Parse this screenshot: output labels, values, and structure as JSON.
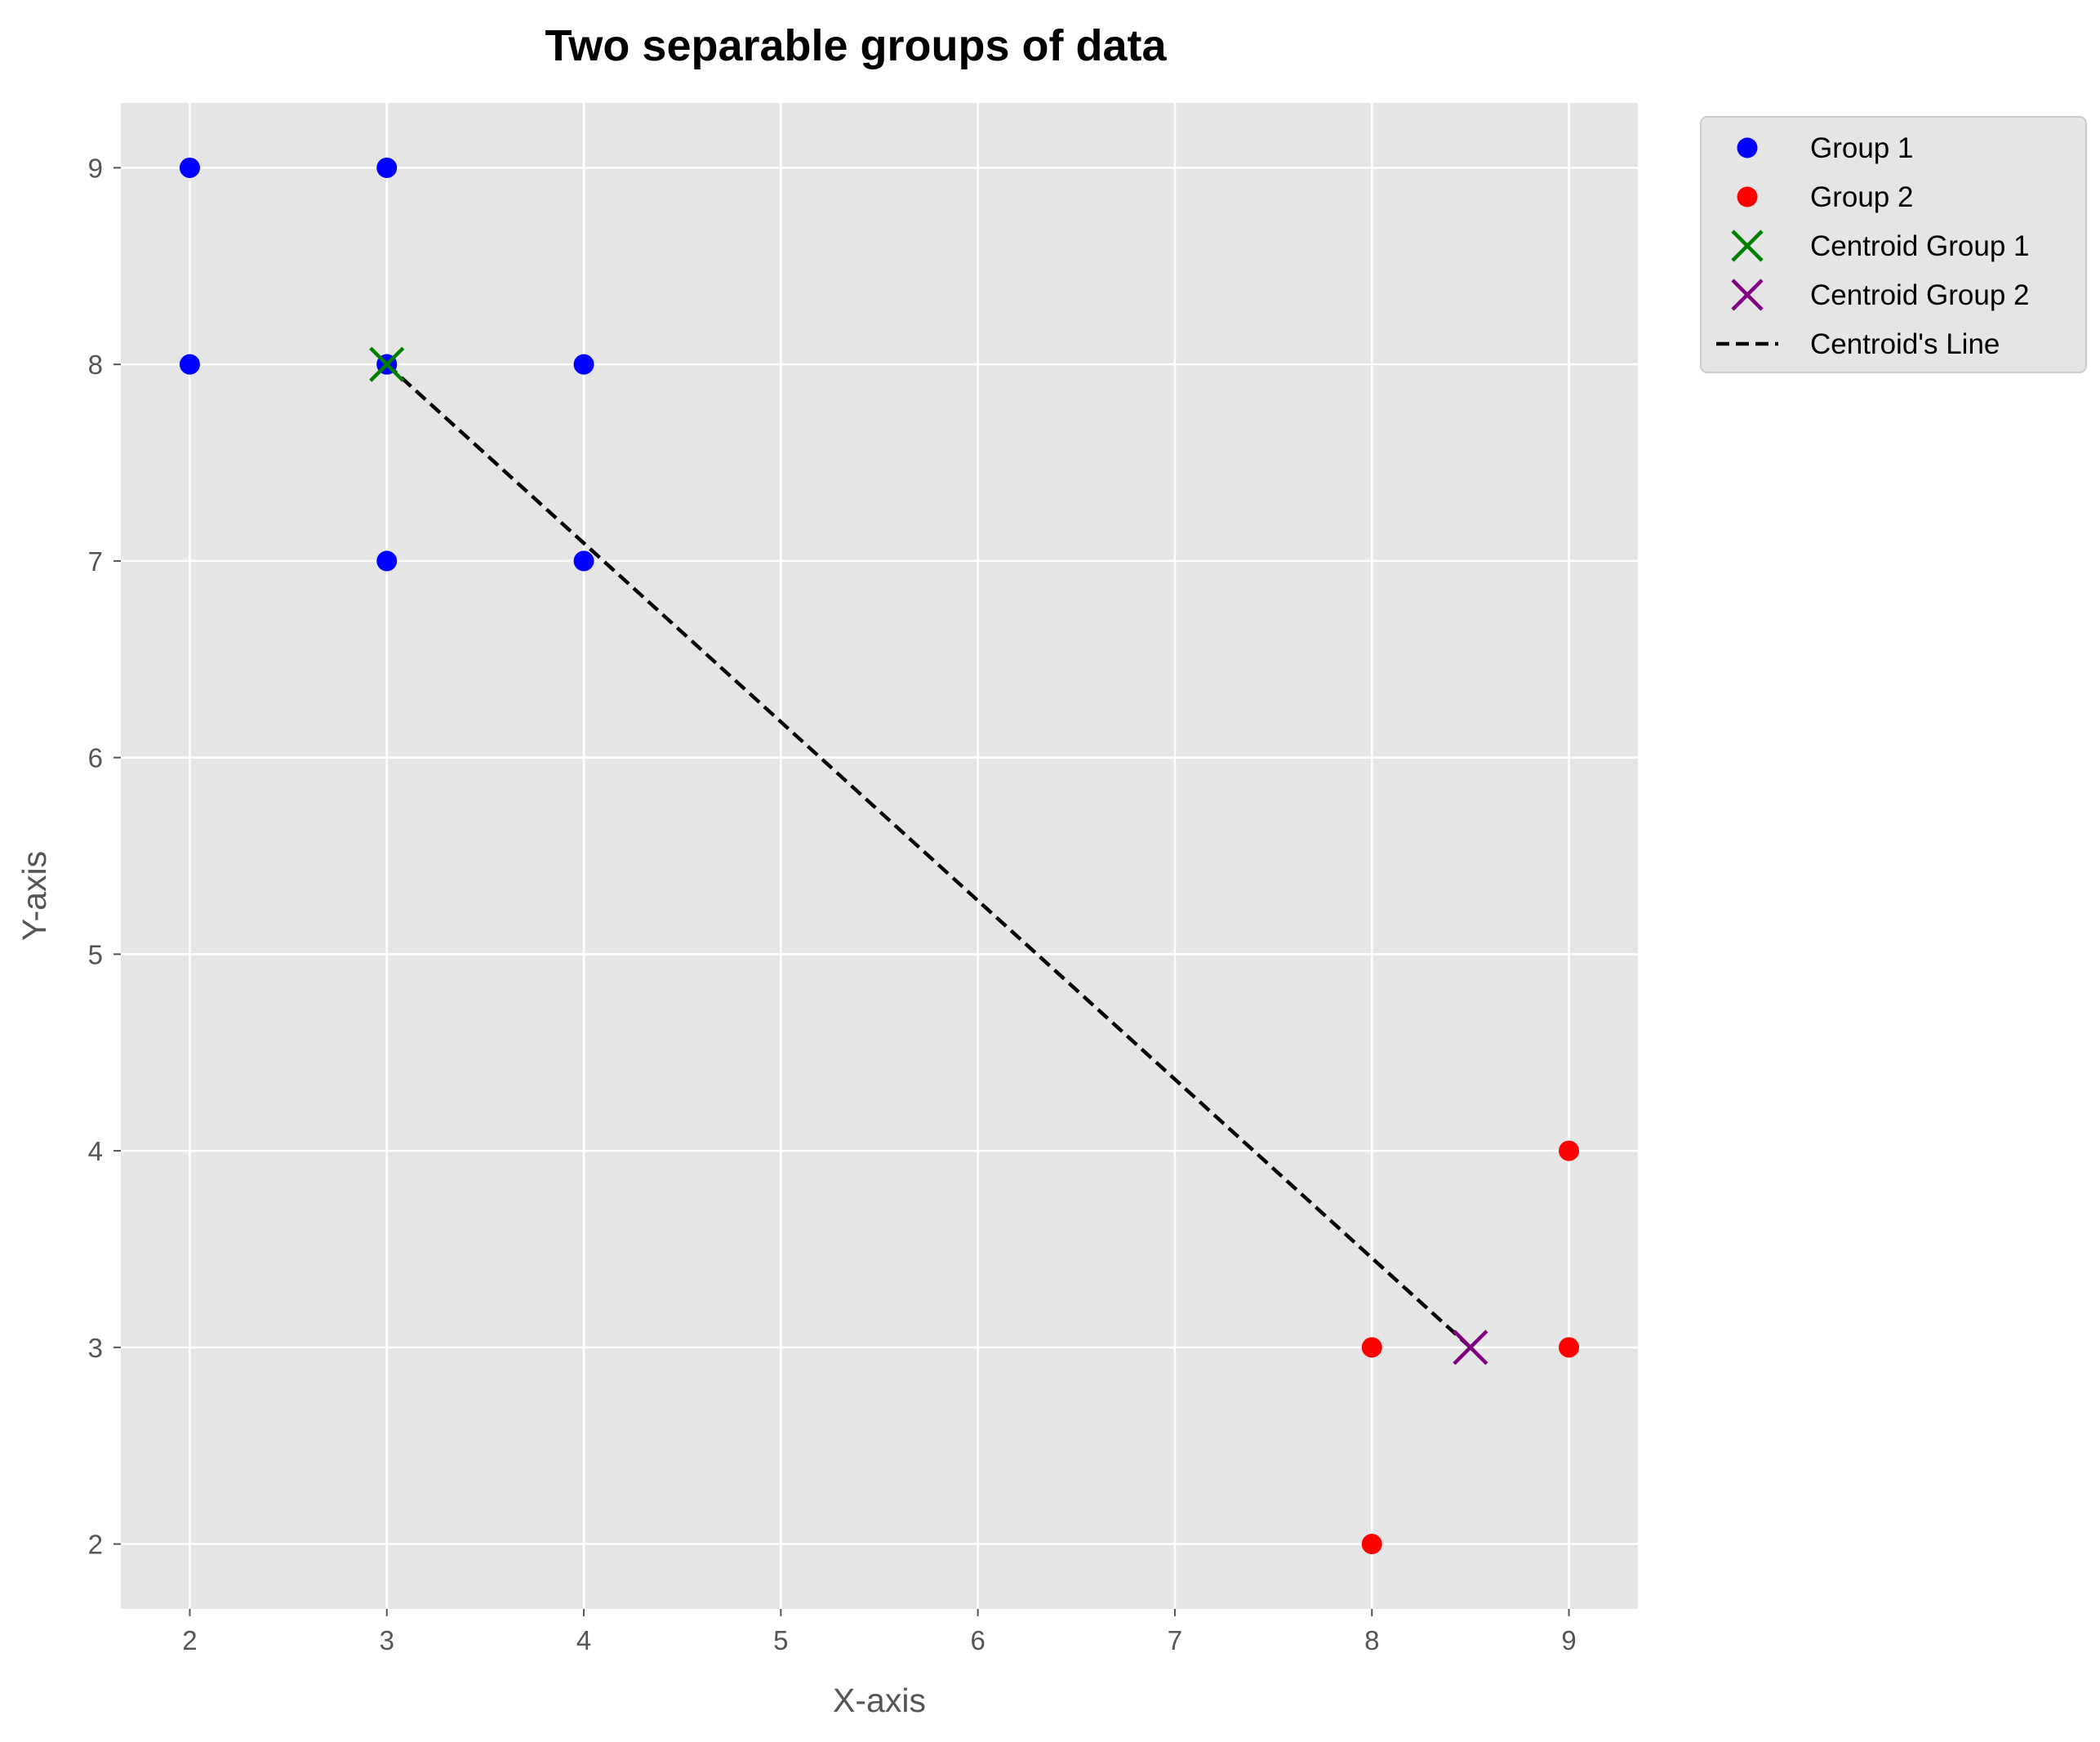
{
  "chart_data": {
    "type": "scatter",
    "title": "Two separable groups of data",
    "xlabel": "X-axis",
    "ylabel": "Y-axis",
    "xlim": [
      1.65,
      9.35
    ],
    "ylim": [
      1.67,
      9.33
    ],
    "xticks": [
      2,
      3,
      4,
      5,
      6,
      7,
      8,
      9
    ],
    "yticks": [
      2,
      3,
      4,
      5,
      6,
      7,
      8,
      9
    ],
    "grid": true,
    "legend_position": "outside-top-right",
    "series": [
      {
        "name": "Group 1",
        "marker": "circle",
        "color": "#0000ff",
        "x": [
          2,
          3,
          2,
          3,
          4,
          3,
          4,
          3
        ],
        "y": [
          9,
          9,
          8,
          8,
          8,
          7,
          7,
          8
        ]
      },
      {
        "name": "Group 2",
        "marker": "circle",
        "color": "#ff0000",
        "x": [
          9,
          8,
          9,
          8
        ],
        "y": [
          4,
          3,
          3,
          2
        ]
      },
      {
        "name": "Centroid Group 1",
        "marker": "x",
        "color": "#008000",
        "x": [
          3
        ],
        "y": [
          8
        ]
      },
      {
        "name": "Centroid Group 2",
        "marker": "x",
        "color": "#800080",
        "x": [
          8.5
        ],
        "y": [
          3
        ]
      },
      {
        "name": "Centroid's Line",
        "marker": "dashed-line",
        "color": "#000000",
        "x": [
          3,
          8.5
        ],
        "y": [
          8,
          3
        ]
      }
    ]
  },
  "colors": {
    "plot_background": "#e5e5e5",
    "grid": "#ffffff",
    "legend_background": "#e5e5e5"
  }
}
